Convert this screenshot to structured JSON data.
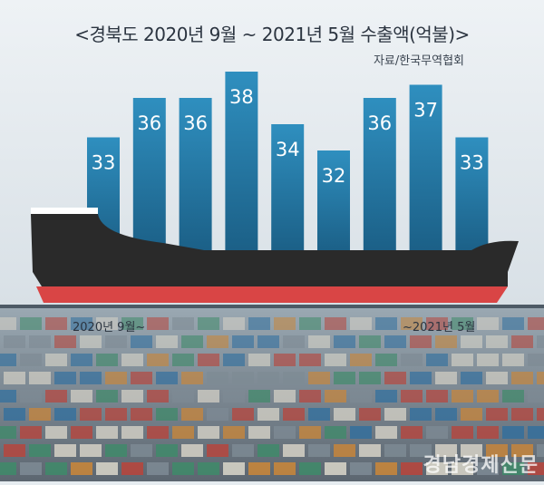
{
  "title": "<경북도 2020년 9월 ~ 2021년 5월 수출액(억불)>",
  "source": "자료/한국무역협회",
  "x_start_label": "2020년 9월~",
  "x_end_label": "~2021년 5월",
  "watermark": "경남경제신문",
  "colors": {
    "bar_top": "#2f8fbf",
    "bar_bottom": "#1b5f86",
    "hull": "#2a2a2a",
    "hull_red": "#d94545",
    "background": "#e6ecf0"
  },
  "chart_data": {
    "type": "bar",
    "title": "<경북도 2020년 9월 ~ 2021년 5월 수출액(억불)>",
    "unit": "억불",
    "categories": [
      "",
      "",
      "",
      "",
      "",
      "",
      "",
      "",
      ""
    ],
    "values": [
      33,
      36,
      36,
      38,
      34,
      32,
      36,
      37,
      33
    ],
    "grid": false,
    "legend": "none"
  }
}
